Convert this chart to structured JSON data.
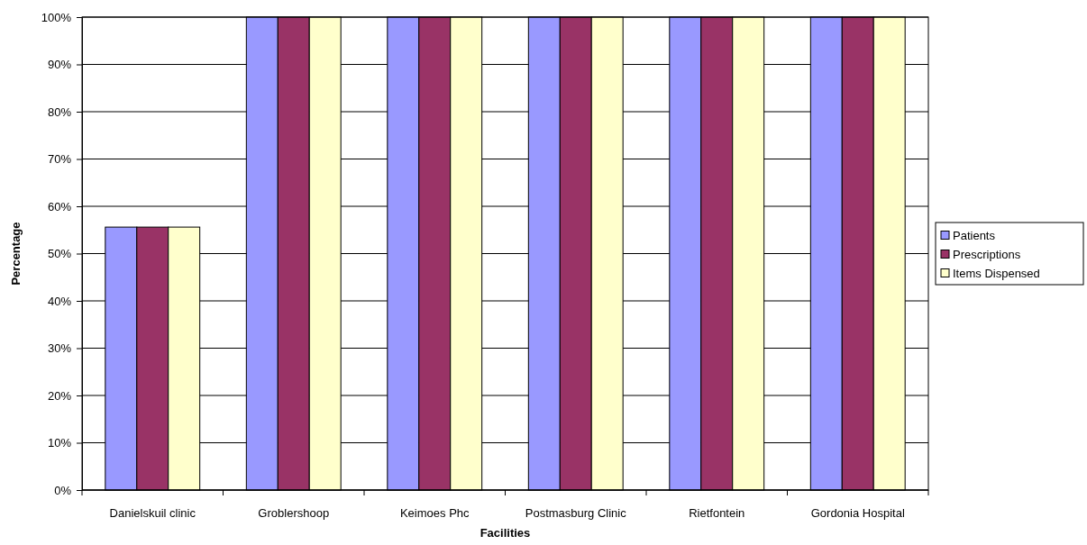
{
  "chart_data": {
    "type": "bar",
    "xlabel": "Facilities",
    "ylabel": "Percentage",
    "categories": [
      "Danielskuil clinic",
      "Groblershoop",
      "Keimoes Phc",
      "Postmasburg Clinic",
      "Rietfontein",
      "Gordonia Hospital"
    ],
    "series": [
      {
        "name": "Patients",
        "color": "#9999ff",
        "values": [
          55.6,
          100,
          100,
          100,
          100,
          100
        ]
      },
      {
        "name": "Prescriptions",
        "color": "#993366",
        "values": [
          55.6,
          100,
          100,
          100,
          100,
          100
        ]
      },
      {
        "name": "Items Dispensed",
        "color": "#ffffcc",
        "values": [
          55.6,
          100,
          100,
          100,
          100,
          100
        ]
      }
    ],
    "ylim": [
      0,
      100
    ],
    "yticks": [
      {
        "value": 0,
        "label": "0%"
      },
      {
        "value": 10,
        "label": "10%"
      },
      {
        "value": 20,
        "label": "20%"
      },
      {
        "value": 30,
        "label": "30%"
      },
      {
        "value": 40,
        "label": "40%"
      },
      {
        "value": 50,
        "label": "50%"
      },
      {
        "value": 60,
        "label": "60%"
      },
      {
        "value": 70,
        "label": "70%"
      },
      {
        "value": 80,
        "label": "80%"
      },
      {
        "value": 90,
        "label": "90%"
      },
      {
        "value": 100,
        "label": "100%"
      }
    ],
    "grid": "y",
    "legend": "right"
  }
}
